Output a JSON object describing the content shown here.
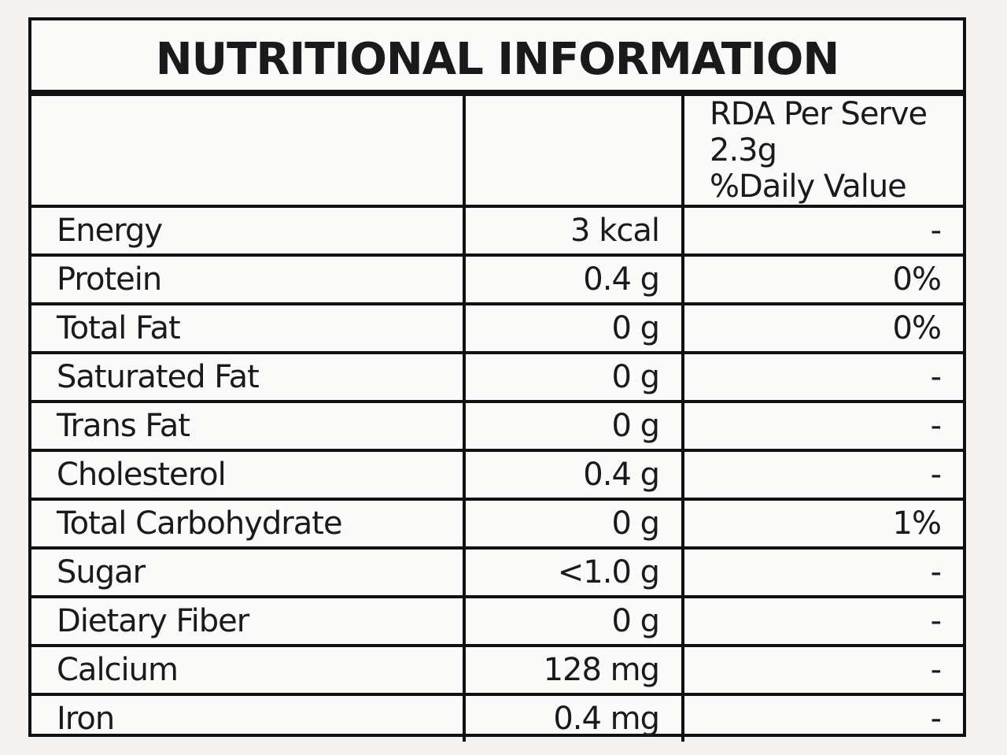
{
  "title": "NUTRITIONAL INFORMATION",
  "table": {
    "header": [
      "",
      "",
      "RDA Per Serve 2.3g\n%Daily Value"
    ],
    "rows": [
      [
        "Energy",
        "3 kcal",
        "-"
      ],
      [
        "Protein",
        "0.4 g",
        "0%"
      ],
      [
        "Total Fat",
        "0 g",
        "0%"
      ],
      [
        "Saturated Fat",
        "0 g",
        "-"
      ],
      [
        "Trans Fat",
        "0 g",
        "-"
      ],
      [
        "Cholesterol",
        "0.4 g",
        "-"
      ],
      [
        "Total Carbohydrate",
        "0 g",
        "1%"
      ],
      [
        "Sugar",
        "<1.0 g",
        "-"
      ],
      [
        "Dietary Fiber",
        "0 g",
        "-"
      ],
      [
        "Calcium",
        "128 mg",
        "-"
      ],
      [
        "Iron",
        "0.4 mg",
        "-"
      ]
    ]
  }
}
